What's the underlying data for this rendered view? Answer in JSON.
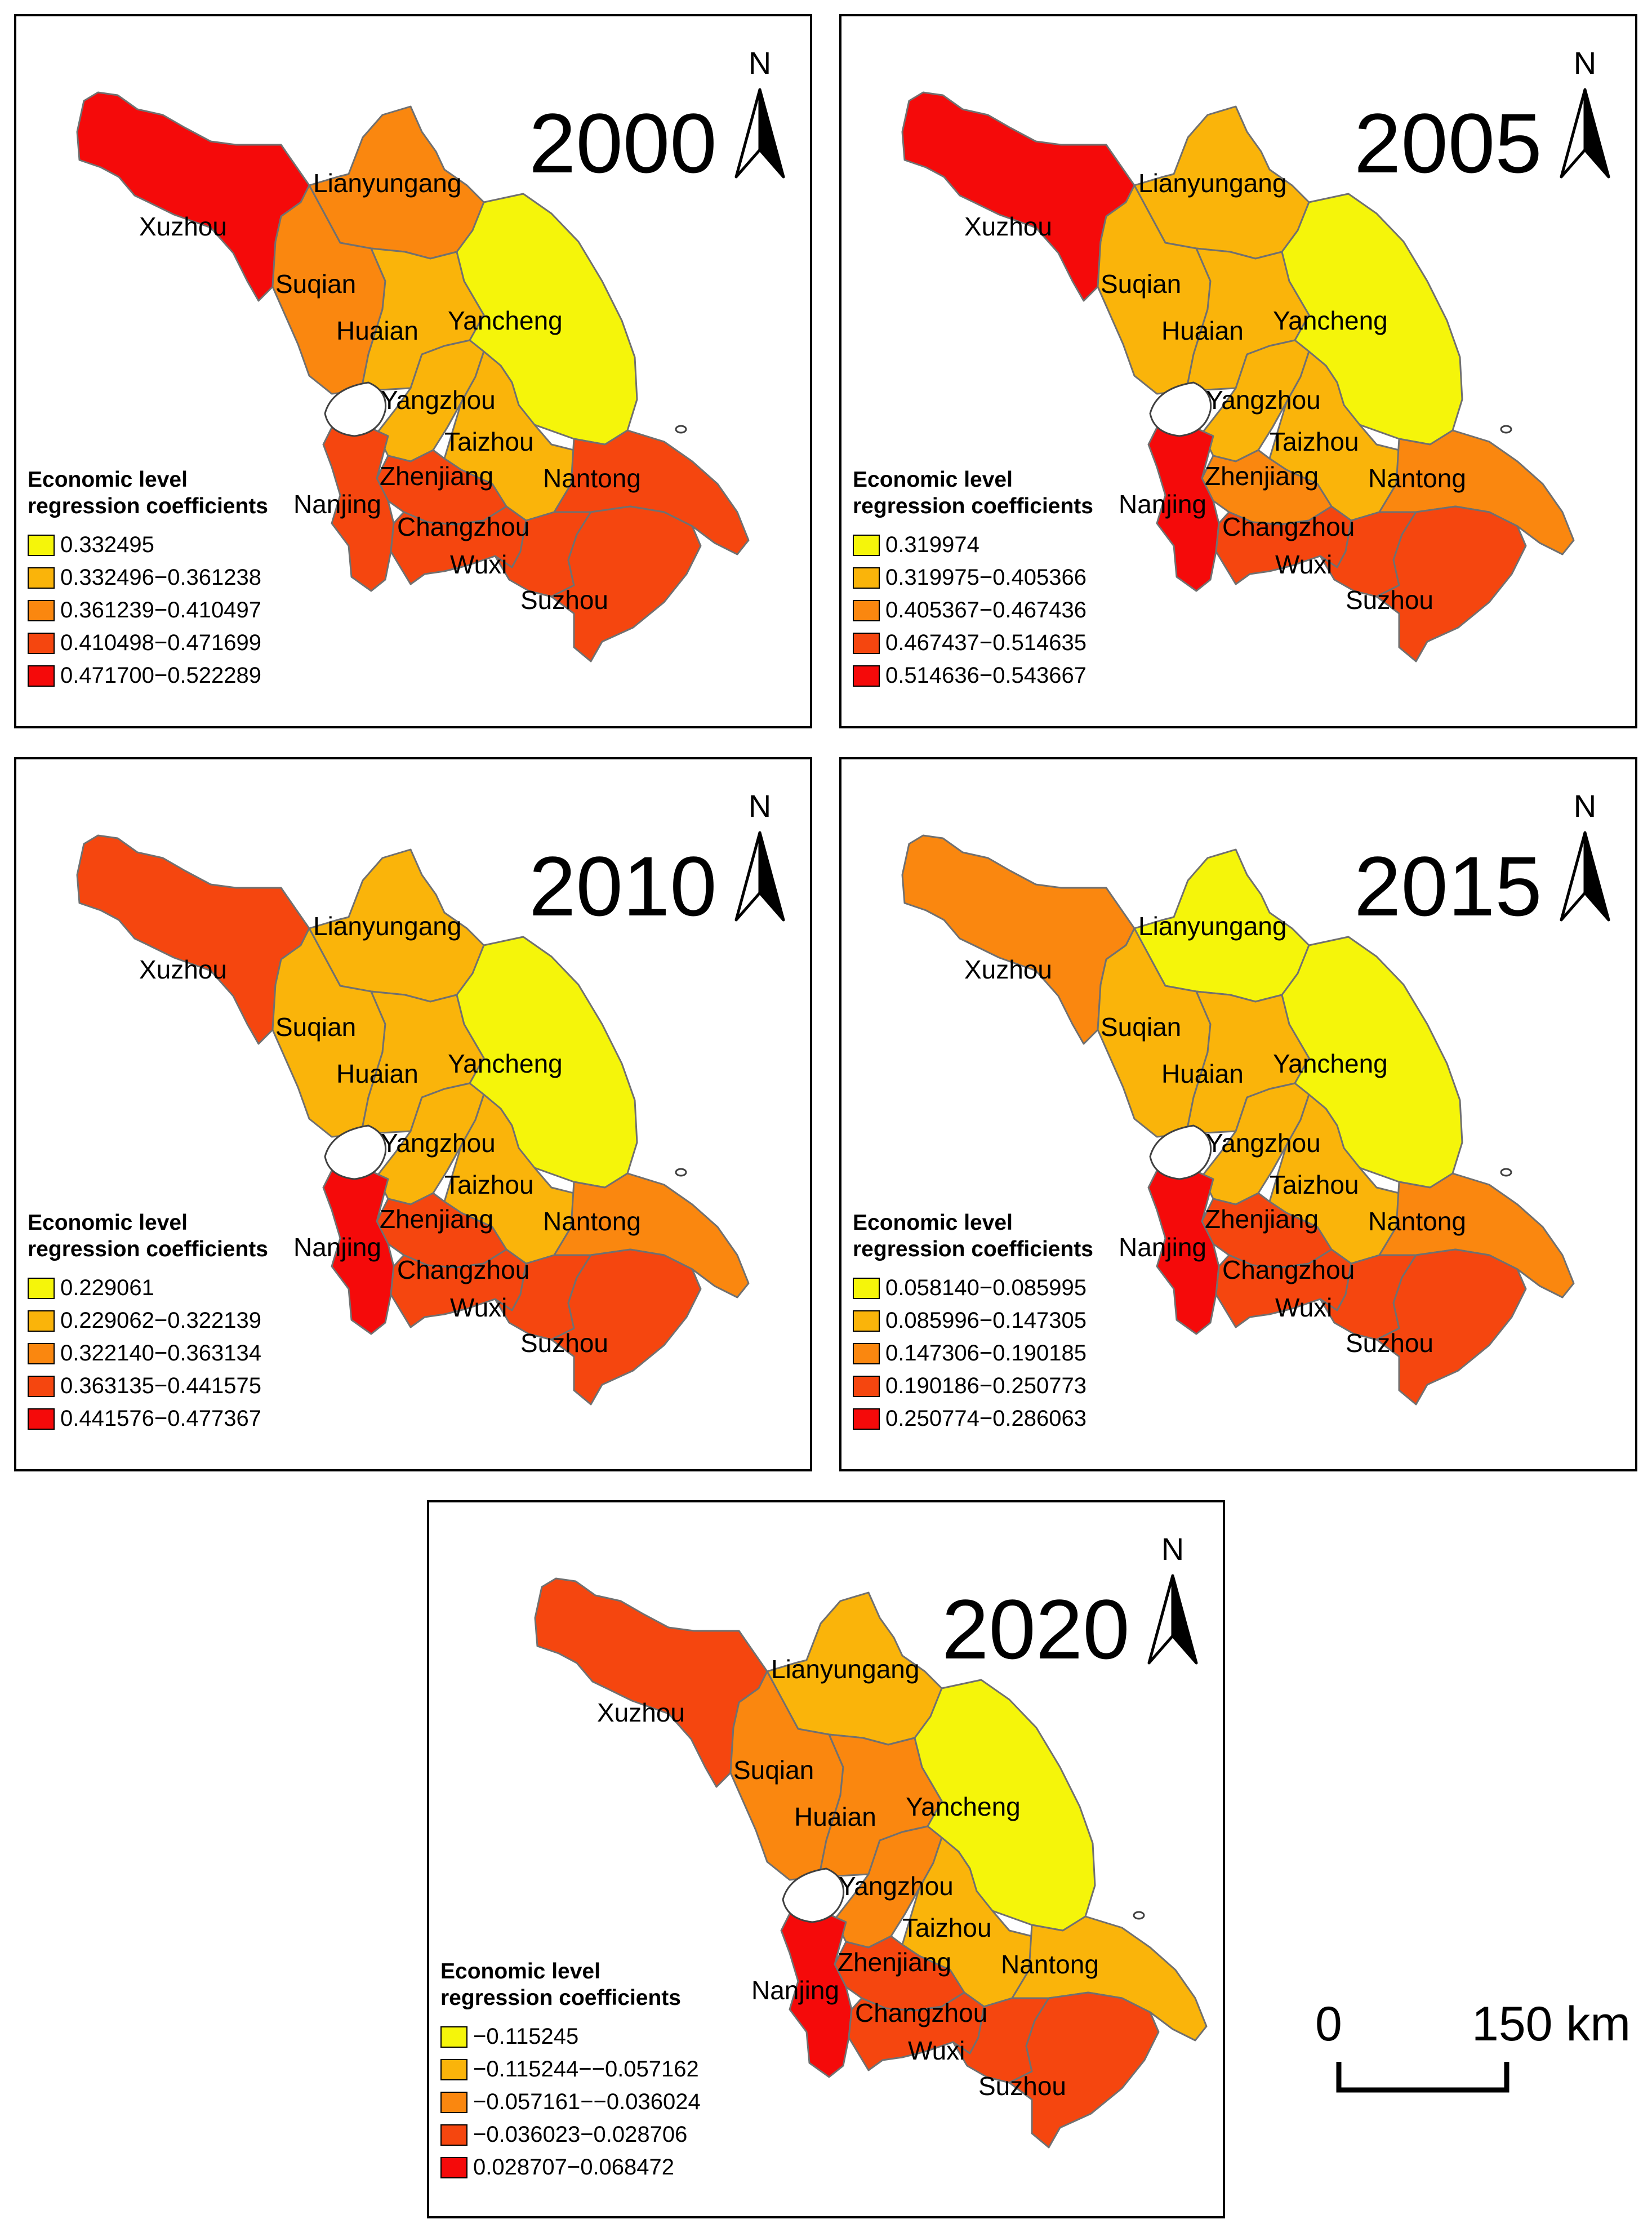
{
  "legend_title_line1": "Economic level",
  "legend_title_line2": "regression coefficients",
  "north_label": "N",
  "scale": {
    "zero": "0",
    "max": "150 km"
  },
  "colors": [
    "#f5f50a",
    "#fab40a",
    "#fa870f",
    "#f5460f",
    "#f50a0a"
  ],
  "city_names": [
    "Lianyungang",
    "Xuzhou",
    "Suqian",
    "Huaian",
    "Yancheng",
    "Yangzhou",
    "Taizhou",
    "Zhenjiang",
    "Nantong",
    "Nanjing",
    "Changzhou",
    "Wuxi",
    "Suzhou"
  ],
  "panels": [
    {
      "year": "2000",
      "legend": [
        "0.332495",
        "0.332496−0.361238",
        "0.361239−0.410497",
        "0.410498−0.471699",
        "0.471700−0.522289"
      ],
      "classes": {
        "Xuzhou": 4,
        "Lianyungang": 2,
        "Suqian": 2,
        "Huaian": 1,
        "Yancheng": 0,
        "Yangzhou": 1,
        "Taizhou": 1,
        "Zhenjiang": 3,
        "Nantong": 3,
        "Nanjing": 3,
        "Changzhou": 3,
        "Wuxi": 3,
        "Suzhou": 3
      }
    },
    {
      "year": "2005",
      "legend": [
        "0.319974",
        "0.319975−0.405366",
        "0.405367−0.467436",
        "0.467437−0.514635",
        "0.514636−0.543667"
      ],
      "classes": {
        "Xuzhou": 4,
        "Lianyungang": 1,
        "Suqian": 1,
        "Huaian": 1,
        "Yancheng": 0,
        "Yangzhou": 1,
        "Taizhou": 1,
        "Zhenjiang": 2,
        "Nantong": 2,
        "Nanjing": 4,
        "Changzhou": 3,
        "Wuxi": 3,
        "Suzhou": 3
      }
    },
    {
      "year": "2010",
      "legend": [
        "0.229061",
        "0.229062−0.322139",
        "0.322140−0.363134",
        "0.363135−0.441575",
        "0.441576−0.477367"
      ],
      "classes": {
        "Xuzhou": 3,
        "Lianyungang": 1,
        "Suqian": 1,
        "Huaian": 1,
        "Yancheng": 0,
        "Yangzhou": 1,
        "Taizhou": 1,
        "Zhenjiang": 3,
        "Nantong": 2,
        "Nanjing": 4,
        "Changzhou": 3,
        "Wuxi": 3,
        "Suzhou": 3
      }
    },
    {
      "year": "2015",
      "legend": [
        "0.058140−0.085995",
        "0.085996−0.147305",
        "0.147306−0.190185",
        "0.190186−0.250773",
        "0.250774−0.286063"
      ],
      "classes": {
        "Xuzhou": 2,
        "Lianyungang": 0,
        "Suqian": 1,
        "Huaian": 1,
        "Yancheng": 0,
        "Yangzhou": 1,
        "Taizhou": 1,
        "Zhenjiang": 3,
        "Nantong": 2,
        "Nanjing": 4,
        "Changzhou": 3,
        "Wuxi": 3,
        "Suzhou": 3
      }
    },
    {
      "year": "2020",
      "legend": [
        "−0.115245",
        "−0.115244−−0.057162",
        "−0.057161−−0.036024",
        "−0.036023−0.028706",
        "0.028707−0.068472"
      ],
      "classes": {
        "Xuzhou": 3,
        "Lianyungang": 1,
        "Suqian": 2,
        "Huaian": 2,
        "Yancheng": 0,
        "Yangzhou": 2,
        "Taizhou": 1,
        "Zhenjiang": 3,
        "Nantong": 1,
        "Nanjing": 4,
        "Changzhou": 3,
        "Wuxi": 3,
        "Suzhou": 3
      }
    }
  ]
}
